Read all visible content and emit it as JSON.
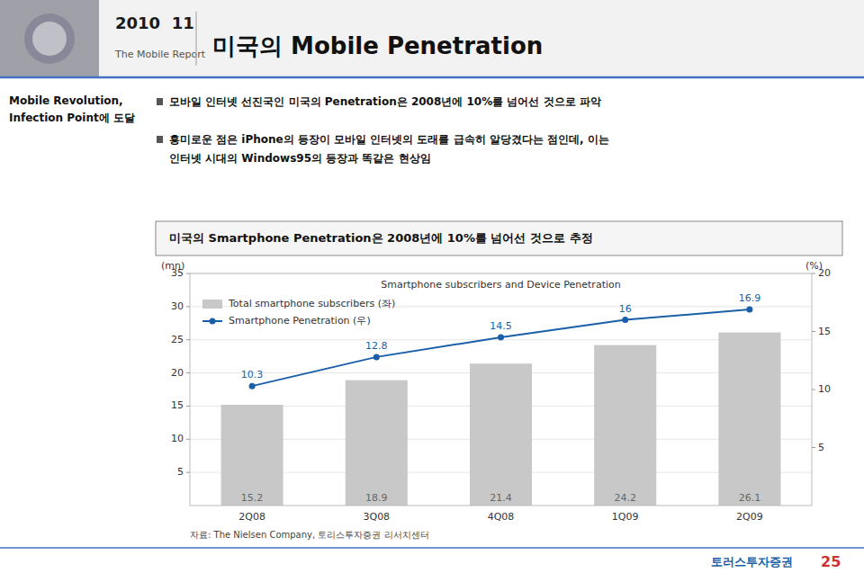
{
  "header_year": "2010  11",
  "header_sub": "The Mobile Report",
  "page_title": "미국의 Mobile Penetration",
  "section_label": "Mobile Revolution,\nInfection Point에 도달",
  "bullet1": "모바일 인터넷 선진국인 미국의 Penetration은 2008년에 10%를 넘어선 것으로 파악",
  "bullet2a": "흥미로운 점은 iPhone의 등장이 모바일 인터넷의 도래를 급속히 알당겼다는 점인데, 이는",
  "bullet2b": "인터넷 시대의 Windows95의 등장과 똑같은 현상임",
  "chart_section_title": "미국의 Smartphone Penetration은 2008년에 10%를 넘어선 것으로 추정",
  "source": "자료: The Nielsen Company, 토리스투자증권 리서치센터",
  "company_name": "토러스투자증권",
  "page_num": "25",
  "chart_data": {
    "type": "bar",
    "title": "Smartphone subscribers and Device Penetration",
    "ylabel": "(mn)",
    "y2label": "(%)",
    "categories": [
      "2Q08",
      "3Q08",
      "4Q08",
      "1Q09",
      "2Q09"
    ],
    "series": [
      {
        "name": "Total smartphone subscribers (좌)",
        "type": "bar",
        "color": "#c8c8c8",
        "values": [
          15.2,
          18.9,
          21.4,
          24.2,
          26.1
        ]
      },
      {
        "name": "Smartphone Penetration (우)",
        "type": "line",
        "color": "#1a5fa8",
        "axis": "y2",
        "marker": "circle",
        "values": [
          10.3,
          12.8,
          14.5,
          16.0,
          16.9
        ]
      }
    ],
    "ylim": [
      0,
      35
    ],
    "yticks": [
      5,
      10,
      15,
      20,
      25,
      30,
      35
    ],
    "y2lim": [
      0,
      20
    ],
    "y2ticks": [
      5,
      10,
      15,
      20
    ],
    "grid": true,
    "legend": "upper left",
    "data_labels": true
  }
}
